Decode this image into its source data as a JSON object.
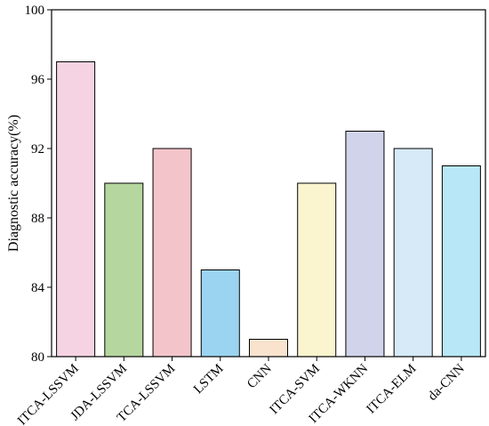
{
  "chart_data": {
    "type": "bar",
    "title": "",
    "xlabel": "",
    "ylabel": "Diagnostic accuracy(%)",
    "ylim": [
      80,
      100
    ],
    "yticks": [
      80,
      84,
      88,
      92,
      96,
      100
    ],
    "grid": false,
    "categories": [
      "ITCA-LSSVM",
      "JDA-LSSVM",
      "TCA-LSSVM",
      "LSTM",
      "CNN",
      "ITCA-SVM",
      "ITCA-WKNN",
      "ITCA-ELM",
      "da-CNN"
    ],
    "values": [
      97,
      90,
      92,
      85,
      81,
      90,
      93,
      92,
      91
    ],
    "colors": [
      "#f6d3e3",
      "#b5d69e",
      "#f3c5ca",
      "#9bd4f1",
      "#f9e3cf",
      "#faf5cf",
      "#d1d3ea",
      "#d6eaf8",
      "#b8e8f7"
    ]
  }
}
